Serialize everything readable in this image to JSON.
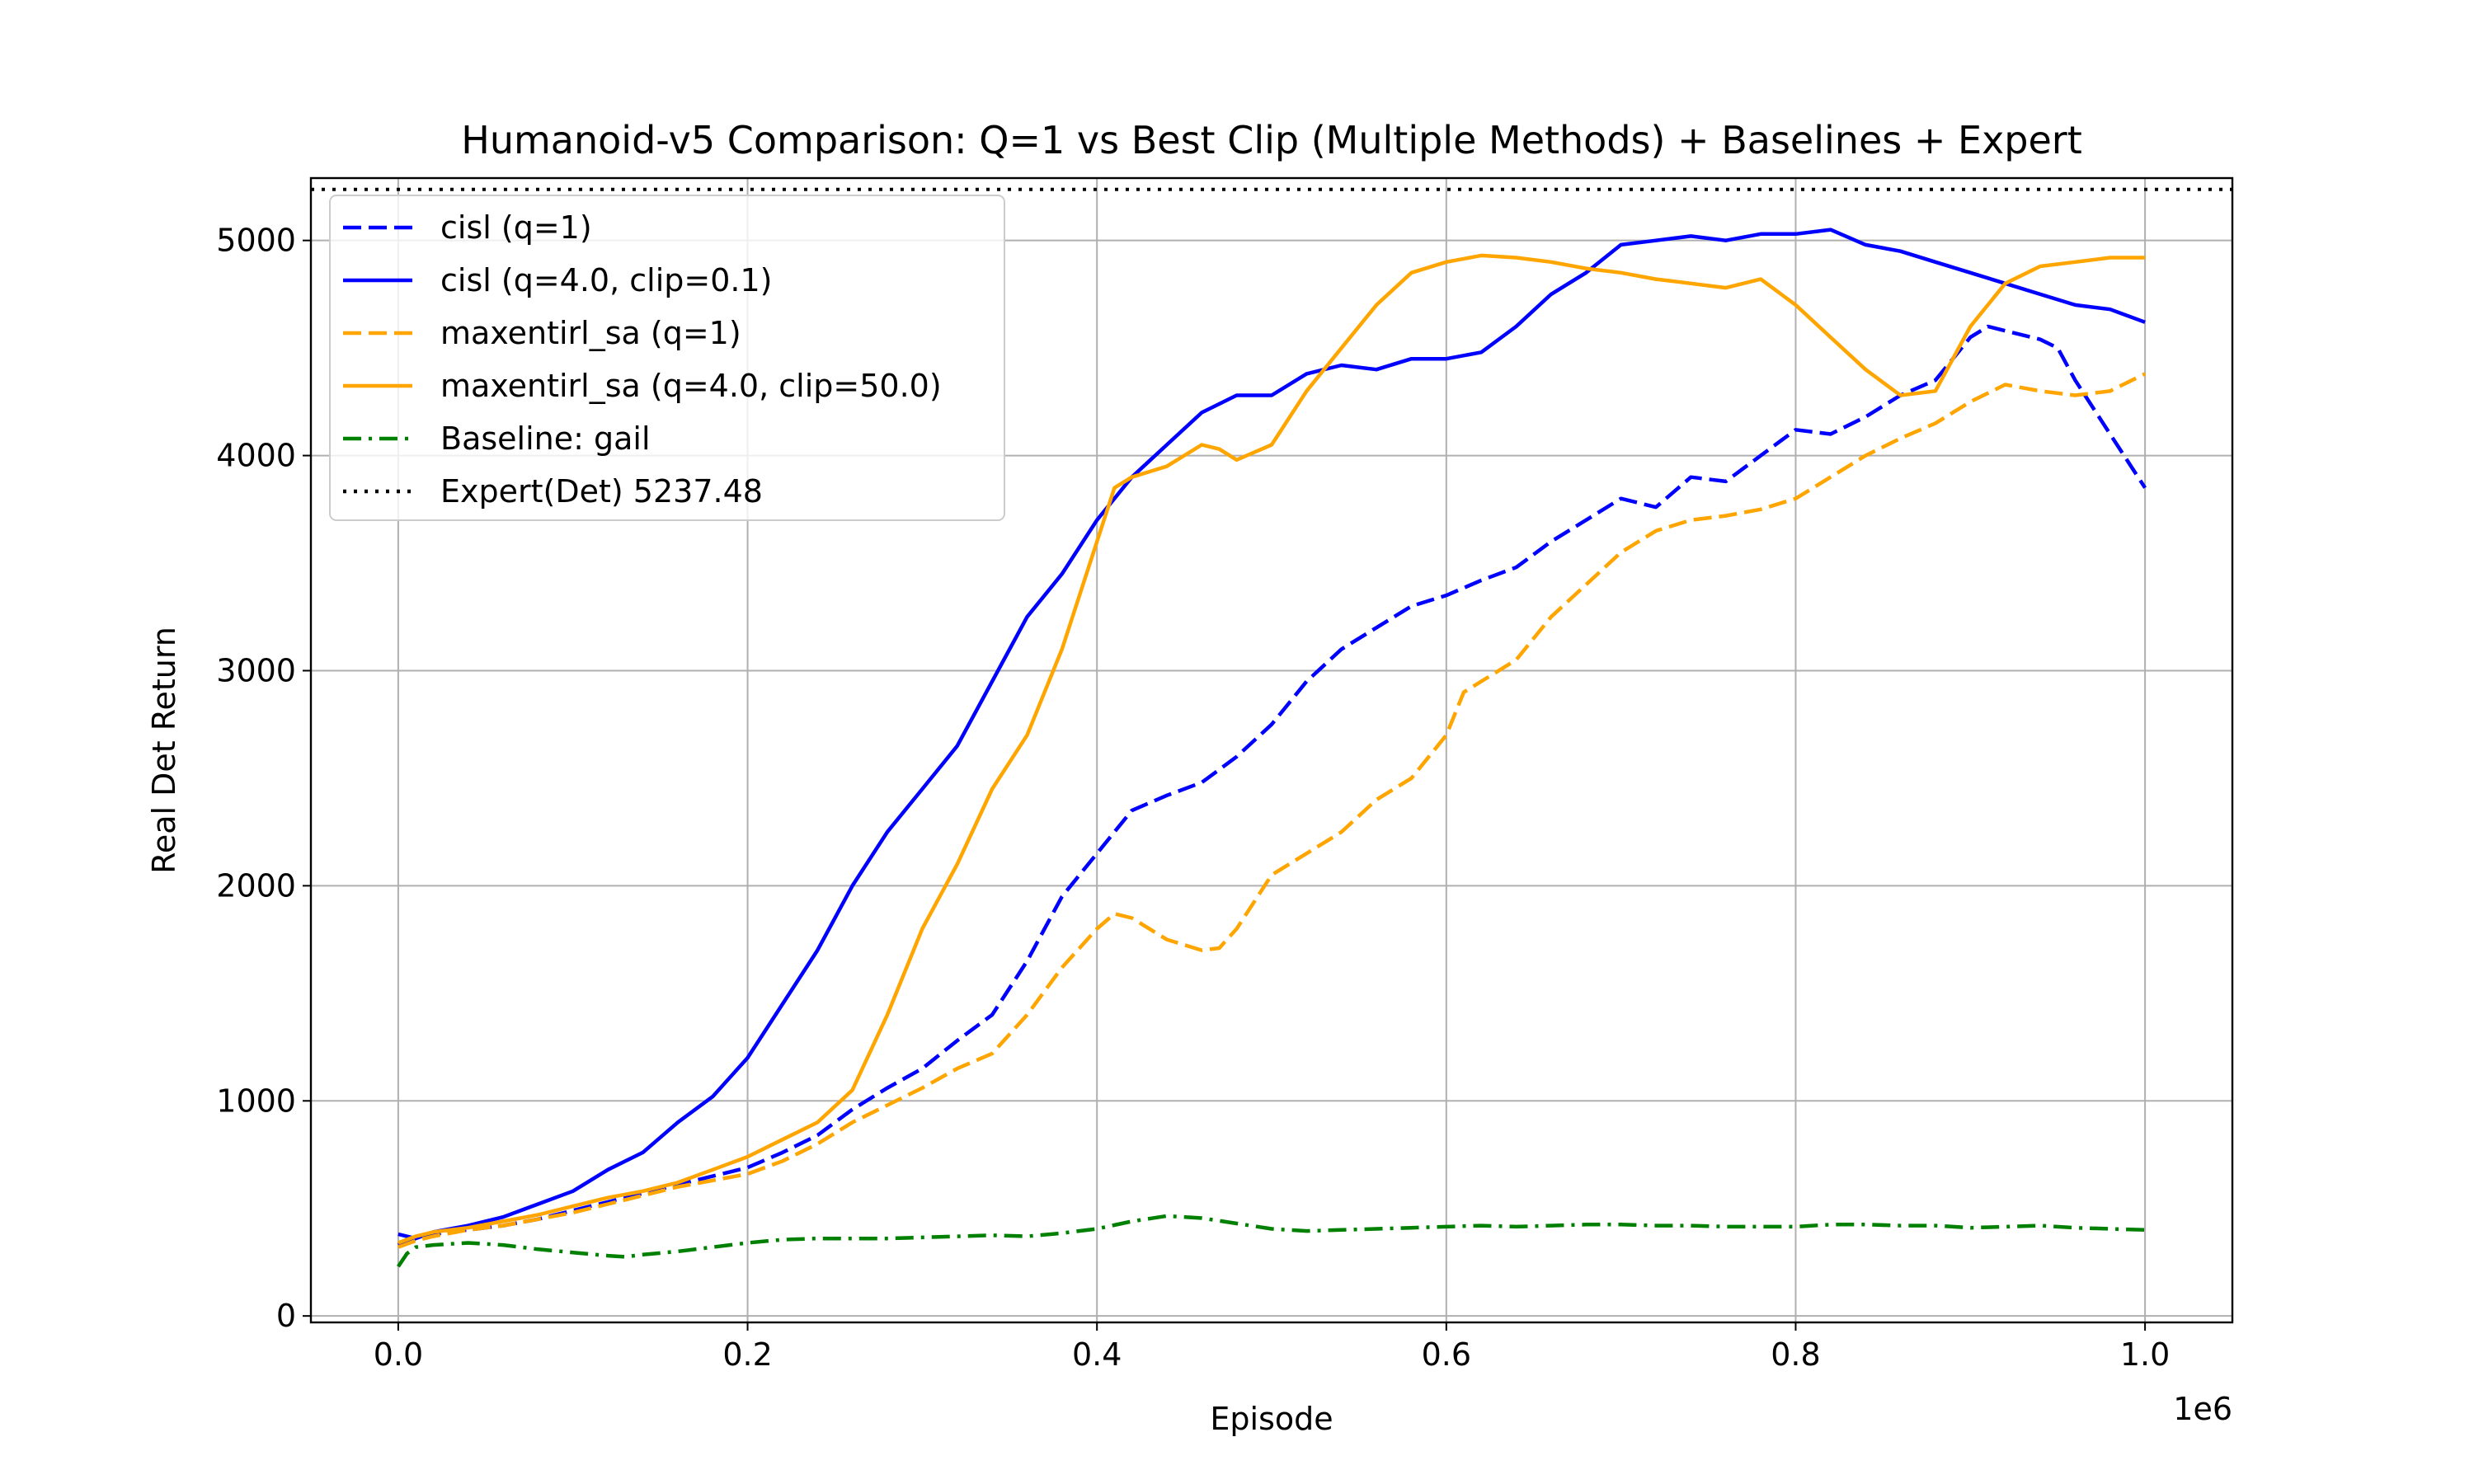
{
  "chart_data": {
    "type": "line",
    "title": "Humanoid-v5 Comparison: Q=1 vs Best Clip (Multiple Methods) + Baselines + Expert",
    "xlabel": "Episode",
    "ylabel": "Real Det Return",
    "x_offset_label": "1e6",
    "xlim": [
      -50000,
      1050000
    ],
    "ylim": [
      -30,
      5290
    ],
    "xticks": [
      0,
      200000,
      400000,
      600000,
      800000,
      1000000
    ],
    "xtick_labels": [
      "0.0",
      "0.2",
      "0.4",
      "0.6",
      "0.8",
      "1.0"
    ],
    "yticks": [
      0,
      1000,
      2000,
      3000,
      4000,
      5000
    ],
    "ytick_labels": [
      "0",
      "1000",
      "2000",
      "3000",
      "4000",
      "5000"
    ],
    "grid": true,
    "legend_position": "upper-left",
    "series": [
      {
        "name": "cisl (q=1)",
        "color": "#0000ff",
        "dash": "dashed",
        "x": [
          0,
          10000,
          20000,
          40000,
          60000,
          80000,
          100000,
          120000,
          140000,
          160000,
          180000,
          200000,
          220000,
          240000,
          260000,
          280000,
          300000,
          320000,
          340000,
          360000,
          380000,
          400000,
          420000,
          440000,
          460000,
          480000,
          500000,
          520000,
          540000,
          560000,
          580000,
          600000,
          620000,
          640000,
          660000,
          680000,
          700000,
          720000,
          740000,
          760000,
          780000,
          800000,
          820000,
          840000,
          860000,
          880000,
          900000,
          910000,
          920000,
          940000,
          950000,
          960000,
          980000,
          1000000
        ],
        "y": [
          380,
          360,
          380,
          400,
          420,
          450,
          490,
          530,
          570,
          610,
          650,
          690,
          760,
          840,
          960,
          1060,
          1150,
          1280,
          1400,
          1650,
          1950,
          2150,
          2350,
          2420,
          2480,
          2600,
          2750,
          2950,
          3100,
          3200,
          3300,
          3350,
          3420,
          3480,
          3600,
          3700,
          3800,
          3760,
          3900,
          3880,
          4000,
          4120,
          4100,
          4180,
          4280,
          4350,
          4550,
          4600,
          4580,
          4540,
          4500,
          4350,
          4100,
          3850
        ]
      },
      {
        "name": "cisl (q=4.0, clip=0.1)",
        "color": "#0000ff",
        "dash": "solid",
        "x": [
          0,
          10000,
          20000,
          40000,
          60000,
          80000,
          100000,
          120000,
          140000,
          160000,
          180000,
          200000,
          220000,
          240000,
          260000,
          280000,
          300000,
          320000,
          340000,
          360000,
          380000,
          400000,
          420000,
          440000,
          460000,
          480000,
          500000,
          520000,
          540000,
          560000,
          580000,
          600000,
          620000,
          640000,
          660000,
          680000,
          700000,
          720000,
          740000,
          760000,
          780000,
          800000,
          820000,
          840000,
          860000,
          880000,
          900000,
          920000,
          940000,
          960000,
          980000,
          1000000
        ],
        "y": [
          330,
          360,
          390,
          420,
          460,
          520,
          580,
          680,
          760,
          900,
          1020,
          1200,
          1450,
          1700,
          2000,
          2250,
          2450,
          2650,
          2950,
          3250,
          3450,
          3700,
          3900,
          4050,
          4200,
          4280,
          4280,
          4380,
          4420,
          4400,
          4450,
          4450,
          4480,
          4600,
          4750,
          4850,
          4980,
          5000,
          5020,
          5000,
          5030,
          5030,
          5050,
          4980,
          4950,
          4900,
          4850,
          4800,
          4750,
          4700,
          4680,
          4620
        ]
      },
      {
        "name": "maxentirl_sa (q=1)",
        "color": "#ffa500",
        "dash": "dashed",
        "x": [
          0,
          10000,
          20000,
          40000,
          60000,
          80000,
          100000,
          120000,
          140000,
          160000,
          180000,
          200000,
          220000,
          240000,
          260000,
          280000,
          300000,
          320000,
          340000,
          360000,
          380000,
          400000,
          410000,
          420000,
          440000,
          460000,
          470000,
          480000,
          500000,
          520000,
          540000,
          560000,
          580000,
          600000,
          610000,
          620000,
          640000,
          660000,
          680000,
          700000,
          720000,
          740000,
          760000,
          780000,
          800000,
          820000,
          840000,
          860000,
          880000,
          900000,
          920000,
          940000,
          960000,
          980000,
          1000000
        ],
        "y": [
          320,
          350,
          370,
          400,
          420,
          450,
          480,
          520,
          560,
          600,
          630,
          660,
          720,
          800,
          900,
          980,
          1060,
          1150,
          1220,
          1400,
          1620,
          1800,
          1870,
          1850,
          1750,
          1700,
          1710,
          1800,
          2050,
          2150,
          2250,
          2400,
          2500,
          2700,
          2900,
          2950,
          3050,
          3250,
          3400,
          3550,
          3650,
          3700,
          3720,
          3750,
          3800,
          3900,
          4000,
          4080,
          4150,
          4250,
          4330,
          4300,
          4280,
          4300,
          4380
        ]
      },
      {
        "name": "maxentirl_sa (q=4.0, clip=50.0)",
        "color": "#ffa500",
        "dash": "solid",
        "x": [
          0,
          10000,
          20000,
          40000,
          60000,
          80000,
          100000,
          120000,
          140000,
          160000,
          180000,
          200000,
          220000,
          240000,
          260000,
          280000,
          300000,
          320000,
          340000,
          360000,
          380000,
          400000,
          410000,
          420000,
          440000,
          460000,
          470000,
          480000,
          500000,
          520000,
          540000,
          560000,
          580000,
          600000,
          620000,
          640000,
          660000,
          680000,
          700000,
          720000,
          740000,
          760000,
          780000,
          800000,
          820000,
          840000,
          860000,
          880000,
          900000,
          920000,
          940000,
          960000,
          980000,
          1000000
        ],
        "y": [
          340,
          370,
          390,
          410,
          440,
          470,
          510,
          550,
          580,
          620,
          680,
          740,
          820,
          900,
          1050,
          1400,
          1800,
          2100,
          2450,
          2700,
          3100,
          3600,
          3850,
          3900,
          3950,
          4050,
          4030,
          3980,
          4050,
          4300,
          4500,
          4700,
          4850,
          4900,
          4930,
          4920,
          4900,
          4870,
          4850,
          4820,
          4800,
          4780,
          4820,
          4700,
          4550,
          4400,
          4280,
          4300,
          4600,
          4800,
          4880,
          4900,
          4920,
          4920
        ]
      },
      {
        "name": "Baseline: gail",
        "color": "#008000",
        "dash": "dashdot",
        "x": [
          0,
          5000,
          10000,
          20000,
          40000,
          60000,
          80000,
          100000,
          120000,
          130000,
          140000,
          160000,
          180000,
          200000,
          220000,
          240000,
          260000,
          280000,
          300000,
          320000,
          340000,
          360000,
          380000,
          400000,
          420000,
          440000,
          460000,
          480000,
          500000,
          520000,
          540000,
          560000,
          580000,
          600000,
          620000,
          640000,
          660000,
          680000,
          700000,
          720000,
          740000,
          760000,
          780000,
          800000,
          820000,
          840000,
          860000,
          880000,
          900000,
          920000,
          940000,
          960000,
          980000,
          1000000
        ],
        "y": [
          230,
          290,
          320,
          330,
          340,
          330,
          310,
          295,
          280,
          275,
          285,
          300,
          320,
          340,
          355,
          360,
          360,
          360,
          365,
          370,
          375,
          370,
          385,
          405,
          440,
          465,
          455,
          430,
          405,
          395,
          400,
          405,
          410,
          415,
          420,
          415,
          420,
          425,
          425,
          420,
          420,
          415,
          415,
          415,
          425,
          425,
          420,
          420,
          410,
          415,
          420,
          410,
          405,
          400
        ]
      }
    ],
    "reference_lines": [
      {
        "name": "Expert(Det) 5237.48",
        "color": "#000000",
        "dash": "dotted",
        "y": 5237.48
      }
    ]
  }
}
